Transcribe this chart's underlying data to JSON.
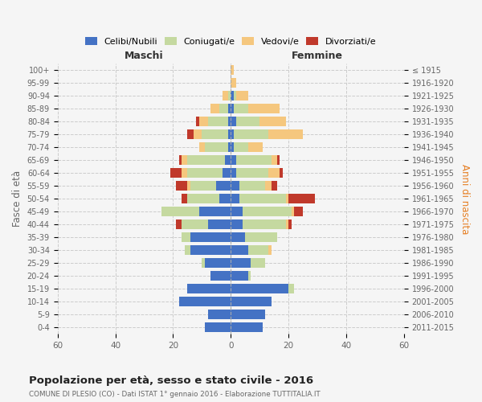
{
  "age_groups": [
    "100+",
    "95-99",
    "90-94",
    "85-89",
    "80-84",
    "75-79",
    "70-74",
    "65-69",
    "60-64",
    "55-59",
    "50-54",
    "45-49",
    "40-44",
    "35-39",
    "30-34",
    "25-29",
    "20-24",
    "15-19",
    "10-14",
    "5-9",
    "0-4"
  ],
  "birth_years": [
    "≤ 1915",
    "1916-1920",
    "1921-1925",
    "1926-1930",
    "1931-1935",
    "1936-1940",
    "1941-1945",
    "1946-1950",
    "1951-1955",
    "1956-1960",
    "1961-1965",
    "1966-1970",
    "1971-1975",
    "1976-1980",
    "1981-1985",
    "1986-1990",
    "1991-1995",
    "1996-2000",
    "2001-2005",
    "2006-2010",
    "2011-2015"
  ],
  "maschi": {
    "celibi": [
      0,
      0,
      0,
      1,
      1,
      1,
      1,
      2,
      3,
      5,
      4,
      11,
      8,
      14,
      14,
      9,
      7,
      15,
      18,
      8,
      9
    ],
    "coniugati": [
      0,
      0,
      1,
      3,
      7,
      9,
      8,
      13,
      12,
      9,
      11,
      13,
      9,
      3,
      2,
      1,
      0,
      0,
      0,
      0,
      0
    ],
    "vedovi": [
      0,
      0,
      2,
      3,
      3,
      3,
      2,
      2,
      2,
      1,
      0,
      0,
      0,
      0,
      0,
      0,
      0,
      0,
      0,
      0,
      0
    ],
    "divorziati": [
      0,
      0,
      0,
      0,
      1,
      2,
      0,
      1,
      4,
      4,
      2,
      0,
      2,
      0,
      0,
      0,
      0,
      0,
      0,
      0,
      0
    ]
  },
  "femmine": {
    "nubili": [
      0,
      0,
      1,
      1,
      2,
      1,
      1,
      2,
      2,
      3,
      3,
      4,
      4,
      5,
      6,
      7,
      6,
      20,
      14,
      12,
      11
    ],
    "coniugate": [
      0,
      0,
      1,
      5,
      8,
      12,
      5,
      12,
      11,
      9,
      16,
      17,
      15,
      11,
      7,
      5,
      1,
      2,
      0,
      0,
      0
    ],
    "vedove": [
      1,
      2,
      4,
      11,
      9,
      12,
      5,
      2,
      4,
      2,
      1,
      1,
      1,
      0,
      1,
      0,
      0,
      0,
      0,
      0,
      0
    ],
    "divorziate": [
      0,
      0,
      0,
      0,
      0,
      0,
      0,
      1,
      1,
      2,
      9,
      3,
      1,
      0,
      0,
      0,
      0,
      0,
      0,
      0,
      0
    ]
  },
  "colors": {
    "celibi_nubili": "#4472c4",
    "coniugati": "#c5d9a0",
    "vedovi": "#f5c77e",
    "divorziati": "#c0392b"
  },
  "title": "Popolazione per età, sesso e stato civile - 2016",
  "subtitle": "COMUNE DI PLESIO (CO) - Dati ISTAT 1° gennaio 2016 - Elaborazione TUTTITALIA.IT",
  "label_maschi": "Maschi",
  "label_femmine": "Femmine",
  "ylabel_left": "Fasce di età",
  "ylabel_right": "Anni di nascita",
  "xlim": 60,
  "background_color": "#f5f5f5",
  "legend_labels": [
    "Celibi/Nubili",
    "Coniugati/e",
    "Vedovi/e",
    "Divorziati/e"
  ]
}
